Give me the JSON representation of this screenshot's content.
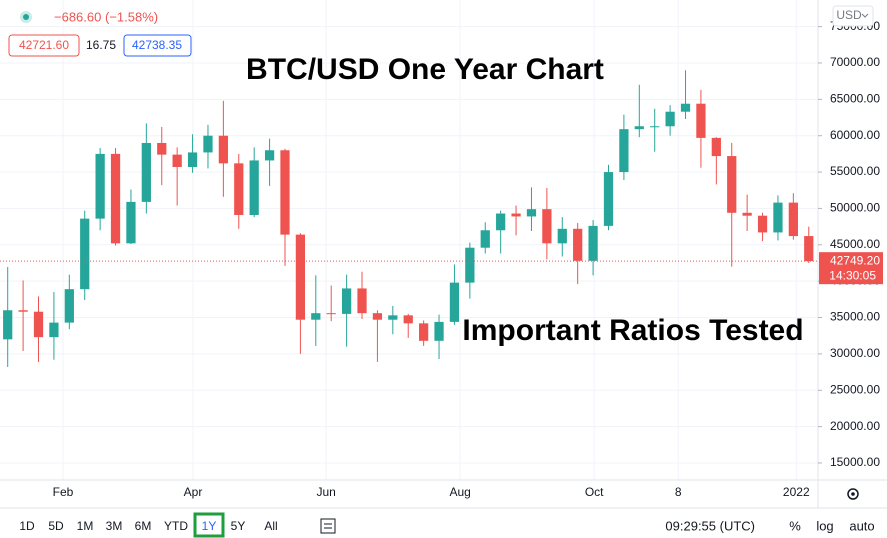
{
  "chart_data": {
    "type": "candlestick",
    "header": {
      "change": "−686.60 (−1.58%)",
      "bid": "42721.60",
      "spread": "16.75",
      "ask": "42738.35",
      "currency": "USD"
    },
    "title": "BTC/USD One Year Chart",
    "annotation": "Important Ratios Tested",
    "open": [
      32000,
      36000,
      35800,
      32300,
      34300,
      38900,
      48600,
      57500,
      45200,
      50900,
      59000,
      57400,
      55700,
      57700,
      60000,
      56200,
      49100,
      56600,
      58000,
      46400,
      34700,
      35600,
      35500,
      39000,
      35600,
      34700,
      35300,
      34200,
      31800,
      34400,
      39800,
      44600,
      47000,
      49300,
      48900,
      49900,
      45200,
      47200,
      42800,
      47600,
      55000,
      60900,
      61300,
      61300,
      63300,
      64400,
      59700,
      57200,
      49400,
      49000,
      46700,
      50800,
      46200
    ],
    "high": [
      41950,
      40100,
      37900,
      38500,
      40900,
      49700,
      58300,
      58300,
      52600,
      61700,
      61200,
      58400,
      60200,
      61500,
      64800,
      57500,
      58400,
      59600,
      58200,
      46600,
      40800,
      39400,
      40900,
      41300,
      36000,
      36600,
      35500,
      34600,
      35400,
      42300,
      45300,
      48100,
      49700,
      50400,
      52900,
      52800,
      48800,
      48000,
      48400,
      56000,
      62900,
      67000,
      63700,
      64200,
      69000,
      66300,
      59800,
      59000,
      51900,
      49400,
      51800,
      52100,
      47500
    ],
    "low": [
      28200,
      30400,
      28900,
      29200,
      33400,
      37400,
      47000,
      44900,
      45100,
      49300,
      53200,
      50400,
      54900,
      55500,
      51600,
      47200,
      48800,
      53100,
      42100,
      30000,
      31100,
      34500,
      31000,
      34800,
      28900,
      32700,
      32200,
      31100,
      29300,
      34000,
      37600,
      43800,
      43800,
      46300,
      46900,
      43000,
      43400,
      39600,
      40800,
      47000,
      53900,
      59800,
      57800,
      60000,
      62300,
      55600,
      53300,
      42000,
      46900,
      45500,
      45600,
      45700,
      42500
    ],
    "close": [
      36000,
      35800,
      32300,
      34300,
      38900,
      48600,
      57500,
      45200,
      50900,
      59000,
      57400,
      55700,
      57700,
      60000,
      56200,
      49100,
      56600,
      58000,
      46400,
      34700,
      35600,
      35500,
      39000,
      35600,
      34700,
      35300,
      34200,
      31800,
      34400,
      39800,
      44600,
      47000,
      49300,
      48900,
      49900,
      45200,
      47200,
      42800,
      47600,
      55000,
      60900,
      61300,
      61300,
      63300,
      64400,
      59700,
      57200,
      49400,
      49000,
      46700,
      50800,
      46200,
      42749.2
    ],
    "up_color": "#26a69a",
    "down_color": "#ef5350",
    "last_price": {
      "value": 42749.2,
      "label": "42749.20",
      "countdown": "14:30:05"
    },
    "ylim": [
      12660,
      78660
    ],
    "yticks": [
      {
        "value": 15000,
        "label": "15000.00"
      },
      {
        "value": 20000,
        "label": "20000.00"
      },
      {
        "value": 25000,
        "label": "25000.00"
      },
      {
        "value": 30000,
        "label": "30000.00"
      },
      {
        "value": 35000,
        "label": "35000.00"
      },
      {
        "value": 40000,
        "label": "40000.00"
      },
      {
        "value": 45000,
        "label": "45000.00"
      },
      {
        "value": 50000,
        "label": "50000.00"
      },
      {
        "value": 55000,
        "label": "55000.00"
      },
      {
        "value": 60000,
        "label": "60000.00"
      },
      {
        "value": 65000,
        "label": "65000.00"
      },
      {
        "value": 70000,
        "label": "70000.00"
      },
      {
        "value": 75000,
        "label": "75000.00"
      }
    ],
    "xlim": [
      0,
      53.1
    ],
    "xticks": [
      {
        "value": 4.09,
        "label": "Feb"
      },
      {
        "value": 12.53,
        "label": "Apr"
      },
      {
        "value": 21.17,
        "label": "Jun"
      },
      {
        "value": 29.87,
        "label": "Aug"
      },
      {
        "value": 38.57,
        "label": "Oct"
      },
      {
        "value": 44.03,
        "label": "8"
      },
      {
        "value": 51.69,
        "label": "2022"
      }
    ],
    "grid": true
  },
  "toolbar": {
    "ranges": [
      "1D",
      "5D",
      "1M",
      "3M",
      "6M",
      "YTD",
      "1Y",
      "5Y",
      "All"
    ],
    "active": 6,
    "clock": "09:29:55 (UTC)",
    "options": [
      "%",
      "log",
      "auto"
    ]
  }
}
